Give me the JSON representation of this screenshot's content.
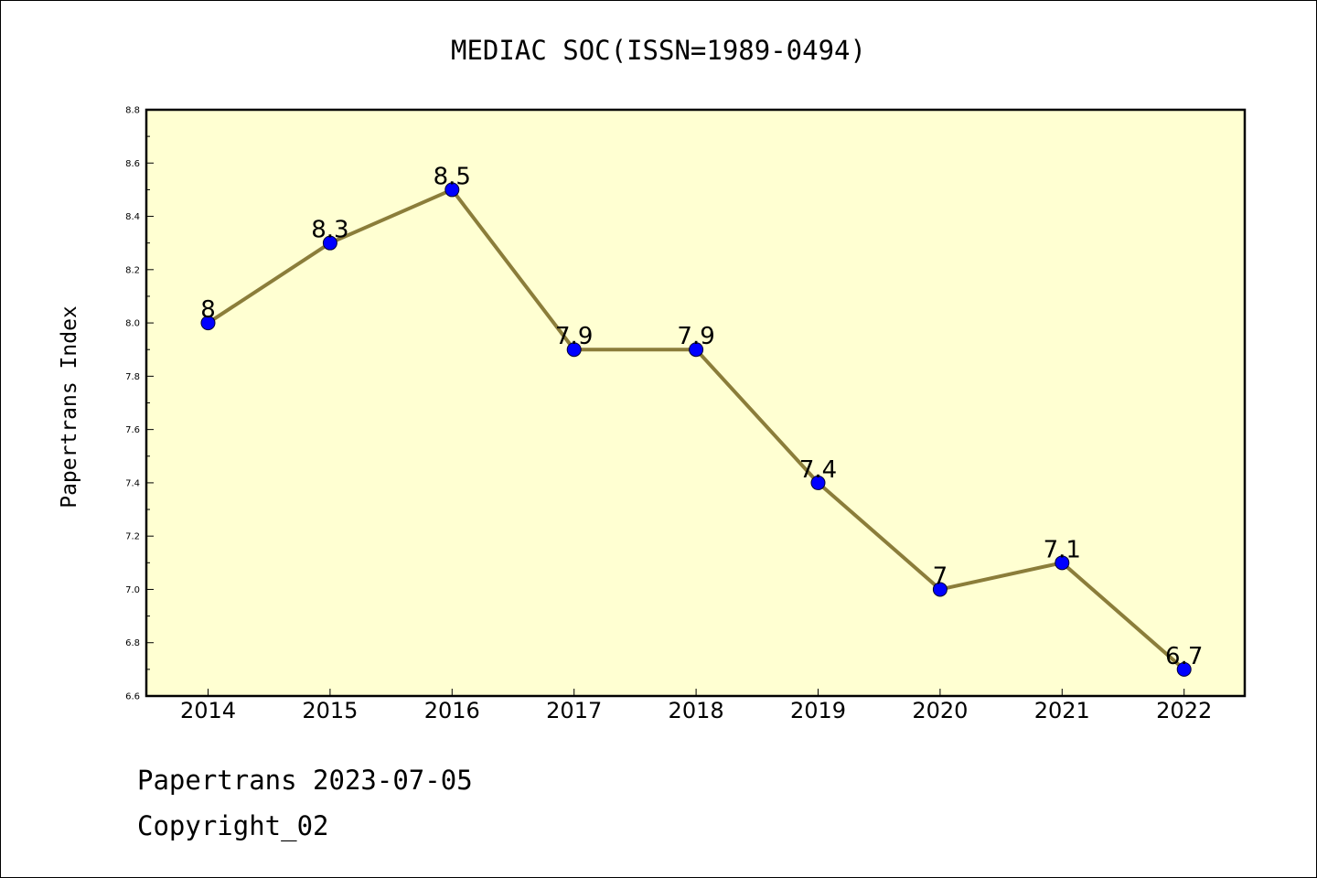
{
  "title": "MEDIAC SOC(ISSN=1989-0494)",
  "footer": {
    "line1": "Papertrans 2023-07-05",
    "line2": "Copyright_02"
  },
  "colors": {
    "plot_bg": "#ffffd2",
    "line": "#8b7d3a",
    "marker": "#0000ff"
  },
  "chart_data": {
    "type": "line",
    "title": "MEDIAC SOC(ISSN=1989-0494)",
    "xlabel": "",
    "ylabel": "Papertrans Index",
    "x": [
      "2014",
      "2015",
      "2016",
      "2017",
      "2018",
      "2019",
      "2020",
      "2021",
      "2022"
    ],
    "series": [
      {
        "values": [
          8,
          8.3,
          8.5,
          7.9,
          7.9,
          7.4,
          7,
          7.1,
          6.7
        ],
        "labels": [
          "8",
          "8.3",
          "8.5",
          "7.9",
          "7.9",
          "7.4",
          "7",
          "7.1",
          "6.7"
        ]
      }
    ],
    "ylim": [
      6.6,
      8.8
    ],
    "yticks": [
      "6.6",
      "6.8",
      "7.0",
      "7.2",
      "7.4",
      "7.6",
      "7.8",
      "8.0",
      "8.2",
      "8.4",
      "8.6",
      "8.8"
    ],
    "grid": false,
    "legend": "none"
  }
}
